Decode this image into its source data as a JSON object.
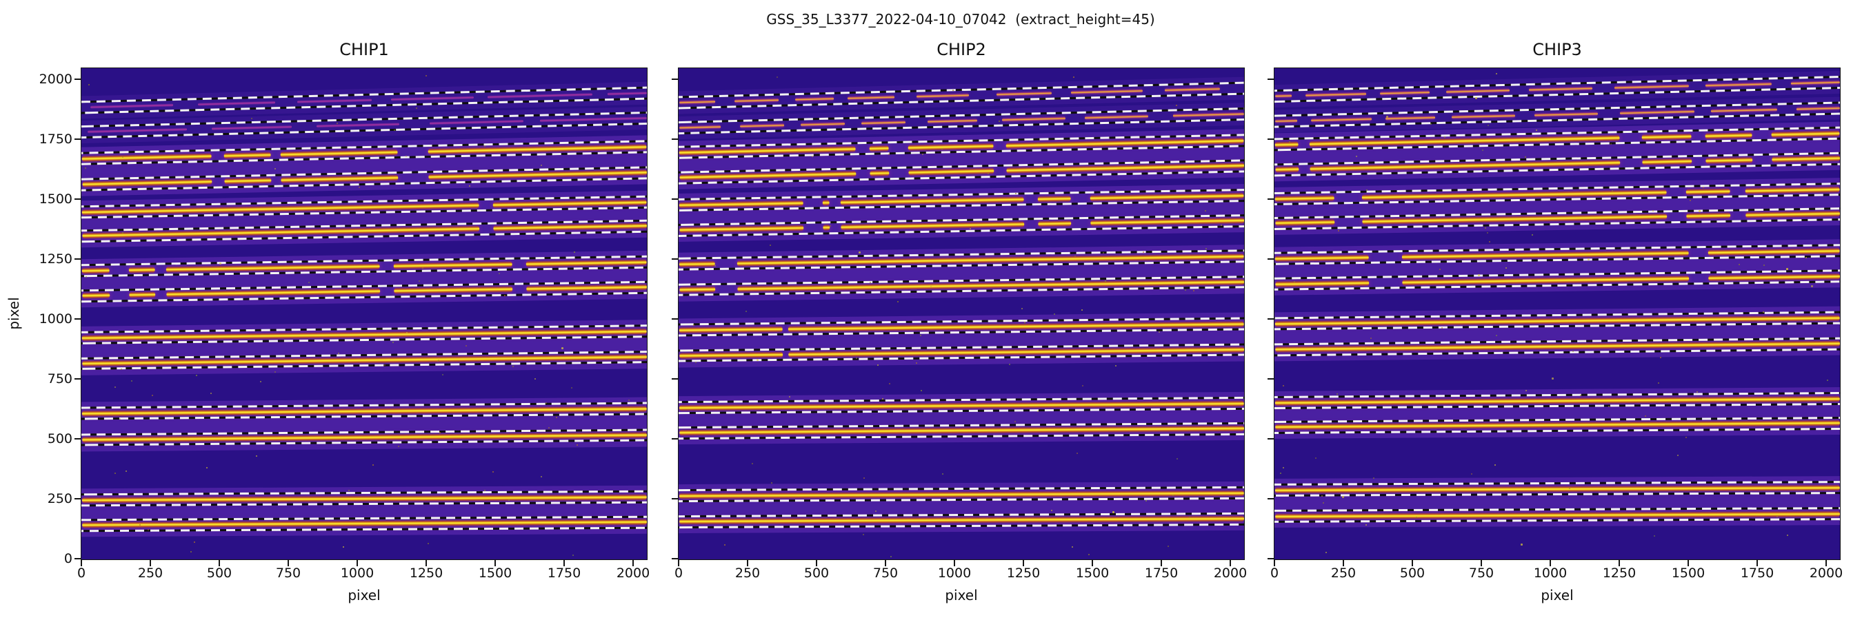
{
  "figure_title": "GSS_35_L3377_2022-04-10_07042  (extract_height=45)",
  "colors": {
    "figure_background": "#ffffff",
    "image_background": "#2a1086",
    "order_band": "#3f1b93",
    "trace_core": "#ffee3a",
    "trace_rim": "#e07a1e",
    "trace_fringe": "#a92a9e",
    "faint_trace": "#d63eaa",
    "patchy_trace": "#f2a030",
    "aperture_dash_white": "#f4f4f4",
    "aperture_dash_black": "#0e0e0e",
    "text": "#111111"
  },
  "chart_data": [
    {
      "type": "heatmap",
      "title": "CHIP1",
      "xlabel": "pixel",
      "ylabel": "pixel",
      "xlim": [
        0,
        2048
      ],
      "ylim": [
        0,
        2048
      ],
      "xticks": [
        0,
        250,
        500,
        750,
        1000,
        1250,
        1500,
        1750,
        2000
      ],
      "yticks": [
        0,
        250,
        500,
        750,
        1000,
        1250,
        1500,
        1750,
        2000
      ],
      "extract_height": 45,
      "aperture_half_height": 22.5,
      "orders": [
        {
          "tilt": 60,
          "traces": [
            {
              "y": 1884,
              "style": "magenta-faint",
              "gaps": [
                [
                  0,
                  30
                ],
                [
                  330,
                  420
                ],
                [
                  700,
                  780
                ],
                [
                  1050,
                  1120
                ],
                [
                  1420,
                  1470
                ],
                [
                  1850,
                  1905
                ]
              ]
            }
          ]
        },
        {
          "tilt": 58,
          "traces": [
            {
              "y": 1781,
              "style": "magenta-faint",
              "gaps": [
                [
                  0,
                  20
                ],
                [
                  380,
                  470
                ],
                [
                  760,
                  850
                ],
                [
                  1150,
                  1260
                ],
                [
                  1600,
                  1660
                ]
              ]
            }
          ]
        },
        {
          "tilt": 50,
          "traces": [
            {
              "y": 1672,
              "style": "bright",
              "gaps": [
                [
                  470,
                  515
                ],
                [
                  685,
                  720
                ],
                [
                  1145,
                  1255
                ]
              ]
            },
            {
              "y": 1564,
              "style": "bright",
              "gaps": [
                [
                  470,
                  515
                ],
                [
                  685,
                  720
                ],
                [
                  1145,
                  1255
                ]
              ]
            }
          ]
        },
        {
          "tilt": 42,
          "traces": [
            {
              "y": 1449,
              "style": "bright",
              "gaps": [
                [
                  1440,
                  1490
                ]
              ]
            },
            {
              "y": 1349,
              "style": "bright",
              "gaps": [
                [
                  1440,
                  1490
                ]
              ]
            }
          ]
        },
        {
          "tilt": 36,
          "traces": [
            {
              "y": 1205,
              "style": "bright",
              "gaps": [
                [
                  100,
                  170
                ],
                [
                  265,
                  305
                ],
                [
                  1080,
                  1130
                ],
                [
                  1560,
                  1610
                ]
              ]
            },
            {
              "y": 1100,
              "style": "bright",
              "gaps": [
                [
                  100,
                  170
                ],
                [
                  265,
                  305
                ],
                [
                  1080,
                  1130
                ],
                [
                  1560,
                  1610
                ]
              ]
            }
          ]
        },
        {
          "tilt": 28,
          "traces": [
            {
              "y": 925,
              "style": "bright",
              "gaps": []
            },
            {
              "y": 818,
              "style": "bright",
              "gaps": []
            }
          ]
        },
        {
          "tilt": 20,
          "traces": [
            {
              "y": 608,
              "style": "bright",
              "gaps": []
            },
            {
              "y": 498,
              "style": "bright",
              "gaps": []
            }
          ]
        },
        {
          "tilt": 13,
          "traces": [
            {
              "y": 248,
              "style": "bright",
              "gaps": []
            },
            {
              "y": 143,
              "style": "bright",
              "gaps": []
            }
          ]
        }
      ]
    },
    {
      "type": "heatmap",
      "title": "CHIP2",
      "xlabel": "pixel",
      "ylabel": "",
      "xlim": [
        0,
        2048
      ],
      "ylim": [
        0,
        2048
      ],
      "xticks": [
        0,
        250,
        500,
        750,
        1000,
        1250,
        1500,
        1750,
        2000
      ],
      "yticks": [
        0,
        250,
        500,
        750,
        1000,
        1250,
        1500,
        1750,
        2000
      ],
      "extract_height": 45,
      "aperture_half_height": 22.5,
      "orders": [
        {
          "tilt": 60,
          "traces": [
            {
              "y": 1905,
              "style": "orange-patchy",
              "gaps": [
                [
                  130,
                  200
                ],
                [
                  360,
                  420
                ],
                [
                  560,
                  610
                ],
                [
                  780,
                  860
                ],
                [
                  1050,
                  1150
                ],
                [
                  1350,
                  1420
                ],
                [
                  1680,
                  1760
                ],
                [
                  1960,
                  2048
                ]
              ]
            }
          ]
        },
        {
          "tilt": 58,
          "traces": [
            {
              "y": 1800,
              "style": "orange-patchy",
              "gaps": [
                [
                  150,
                  220
                ],
                [
                  380,
                  440
                ],
                [
                  600,
                  660
                ],
                [
                  820,
                  900
                ],
                [
                  1080,
                  1170
                ],
                [
                  1400,
                  1470
                ],
                [
                  1700,
                  1790
                ]
              ]
            }
          ]
        },
        {
          "tilt": 50,
          "traces": [
            {
              "y": 1698,
              "style": "bright",
              "gaps": [
                [
                  640,
                  690
                ],
                [
                  760,
                  830
                ],
                [
                  1140,
                  1185
                ]
              ]
            },
            {
              "y": 1593,
              "style": "bright",
              "gaps": [
                [
                  640,
                  690
                ],
                [
                  760,
                  830
                ],
                [
                  1140,
                  1185
                ]
              ]
            }
          ]
        },
        {
          "tilt": 40,
          "traces": [
            {
              "y": 1478,
              "style": "bright",
              "gaps": [
                [
                  450,
                  520
                ],
                [
                  545,
                  585
                ],
                [
                  1250,
                  1300
                ],
                [
                  1420,
                  1490
                ]
              ]
            },
            {
              "y": 1373,
              "style": "bright",
              "gaps": [
                [
                  450,
                  520
                ],
                [
                  545,
                  585
                ],
                [
                  1250,
                  1300
                ],
                [
                  1420,
                  1490
                ]
              ]
            }
          ]
        },
        {
          "tilt": 33,
          "traces": [
            {
              "y": 1231,
              "style": "bright",
              "gaps": [
                [
                  130,
                  210
                ]
              ]
            },
            {
              "y": 1124,
              "style": "bright",
              "gaps": [
                [
                  130,
                  210
                ]
              ]
            }
          ]
        },
        {
          "tilt": 26,
          "traces": [
            {
              "y": 955,
              "style": "bright",
              "gaps": [
                [
                  375,
                  395
                ]
              ]
            },
            {
              "y": 848,
              "style": "bright",
              "gaps": [
                [
                  375,
                  395
                ]
              ]
            }
          ]
        },
        {
          "tilt": 18,
          "traces": [
            {
              "y": 632,
              "style": "bright",
              "gaps": []
            },
            {
              "y": 527,
              "style": "bright",
              "gaps": []
            }
          ]
        },
        {
          "tilt": 12,
          "traces": [
            {
              "y": 266,
              "style": "bright",
              "gaps": []
            },
            {
              "y": 158,
              "style": "bright",
              "gaps": []
            }
          ]
        }
      ]
    },
    {
      "type": "heatmap",
      "title": "CHIP3",
      "xlabel": "pixel",
      "ylabel": "",
      "xlim": [
        0,
        2048
      ],
      "ylim": [
        0,
        2048
      ],
      "xticks": [
        0,
        250,
        500,
        750,
        1000,
        1250,
        1500,
        1750,
        2000
      ],
      "yticks": [
        0,
        250,
        500,
        750,
        1000,
        1250,
        1500,
        1750,
        2000
      ],
      "extract_height": 45,
      "aperture_half_height": 22.5,
      "orders": [
        {
          "tilt": 58,
          "traces": [
            {
              "y": 1933,
              "style": "orange-patchy",
              "gaps": [
                [
                  60,
                  110
                ],
                [
                  330,
                  380
                ],
                [
                  560,
                  620
                ],
                [
                  850,
                  920
                ],
                [
                  1150,
                  1230
                ],
                [
                  1500,
                  1560
                ],
                [
                  1800,
                  1870
                ]
              ]
            }
          ]
        },
        {
          "tilt": 55,
          "traces": [
            {
              "y": 1828,
              "style": "orange-patchy",
              "gaps": [
                [
                  80,
                  130
                ],
                [
                  350,
                  400
                ],
                [
                  580,
                  640
                ],
                [
                  870,
                  940
                ],
                [
                  1170,
                  1250
                ],
                [
                  1520,
                  1580
                ],
                [
                  1820,
                  1890
                ]
              ]
            }
          ]
        },
        {
          "tilt": 48,
          "traces": [
            {
              "y": 1730,
              "style": "bright",
              "gaps": [
                [
                  85,
                  125
                ],
                [
                  1250,
                  1330
                ],
                [
                  1510,
                  1560
                ],
                [
                  1730,
                  1800
                ]
              ]
            },
            {
              "y": 1625,
              "style": "bright",
              "gaps": [
                [
                  85,
                  125
                ],
                [
                  1250,
                  1330
                ],
                [
                  1510,
                  1560
                ],
                [
                  1730,
                  1800
                ]
              ]
            }
          ]
        },
        {
          "tilt": 40,
          "traces": [
            {
              "y": 1504,
              "style": "bright",
              "gaps": [
                [
                  215,
                  315
                ],
                [
                  1420,
                  1490
                ],
                [
                  1650,
                  1705
                ]
              ]
            },
            {
              "y": 1402,
              "style": "bright",
              "gaps": [
                [
                  215,
                  315
                ],
                [
                  1420,
                  1490
                ],
                [
                  1650,
                  1705
                ]
              ]
            }
          ]
        },
        {
          "tilt": 33,
          "traces": [
            {
              "y": 1255,
              "style": "bright",
              "gaps": [
                [
                  340,
                  460
                ],
                [
                  1500,
                  1570
                ]
              ]
            },
            {
              "y": 1149,
              "style": "bright",
              "gaps": [
                [
                  340,
                  460
                ],
                [
                  1500,
                  1570
                ]
              ]
            }
          ]
        },
        {
          "tilt": 25,
          "traces": [
            {
              "y": 983,
              "style": "bright",
              "gaps": []
            },
            {
              "y": 875,
              "style": "bright",
              "gaps": []
            }
          ]
        },
        {
          "tilt": 17,
          "traces": [
            {
              "y": 654,
              "style": "bright",
              "gaps": []
            },
            {
              "y": 552,
              "style": "bright",
              "gaps": []
            }
          ]
        },
        {
          "tilt": 11,
          "traces": [
            {
              "y": 287,
              "style": "bright",
              "gaps": []
            },
            {
              "y": 178,
              "style": "bright",
              "gaps": []
            }
          ]
        }
      ]
    }
  ]
}
